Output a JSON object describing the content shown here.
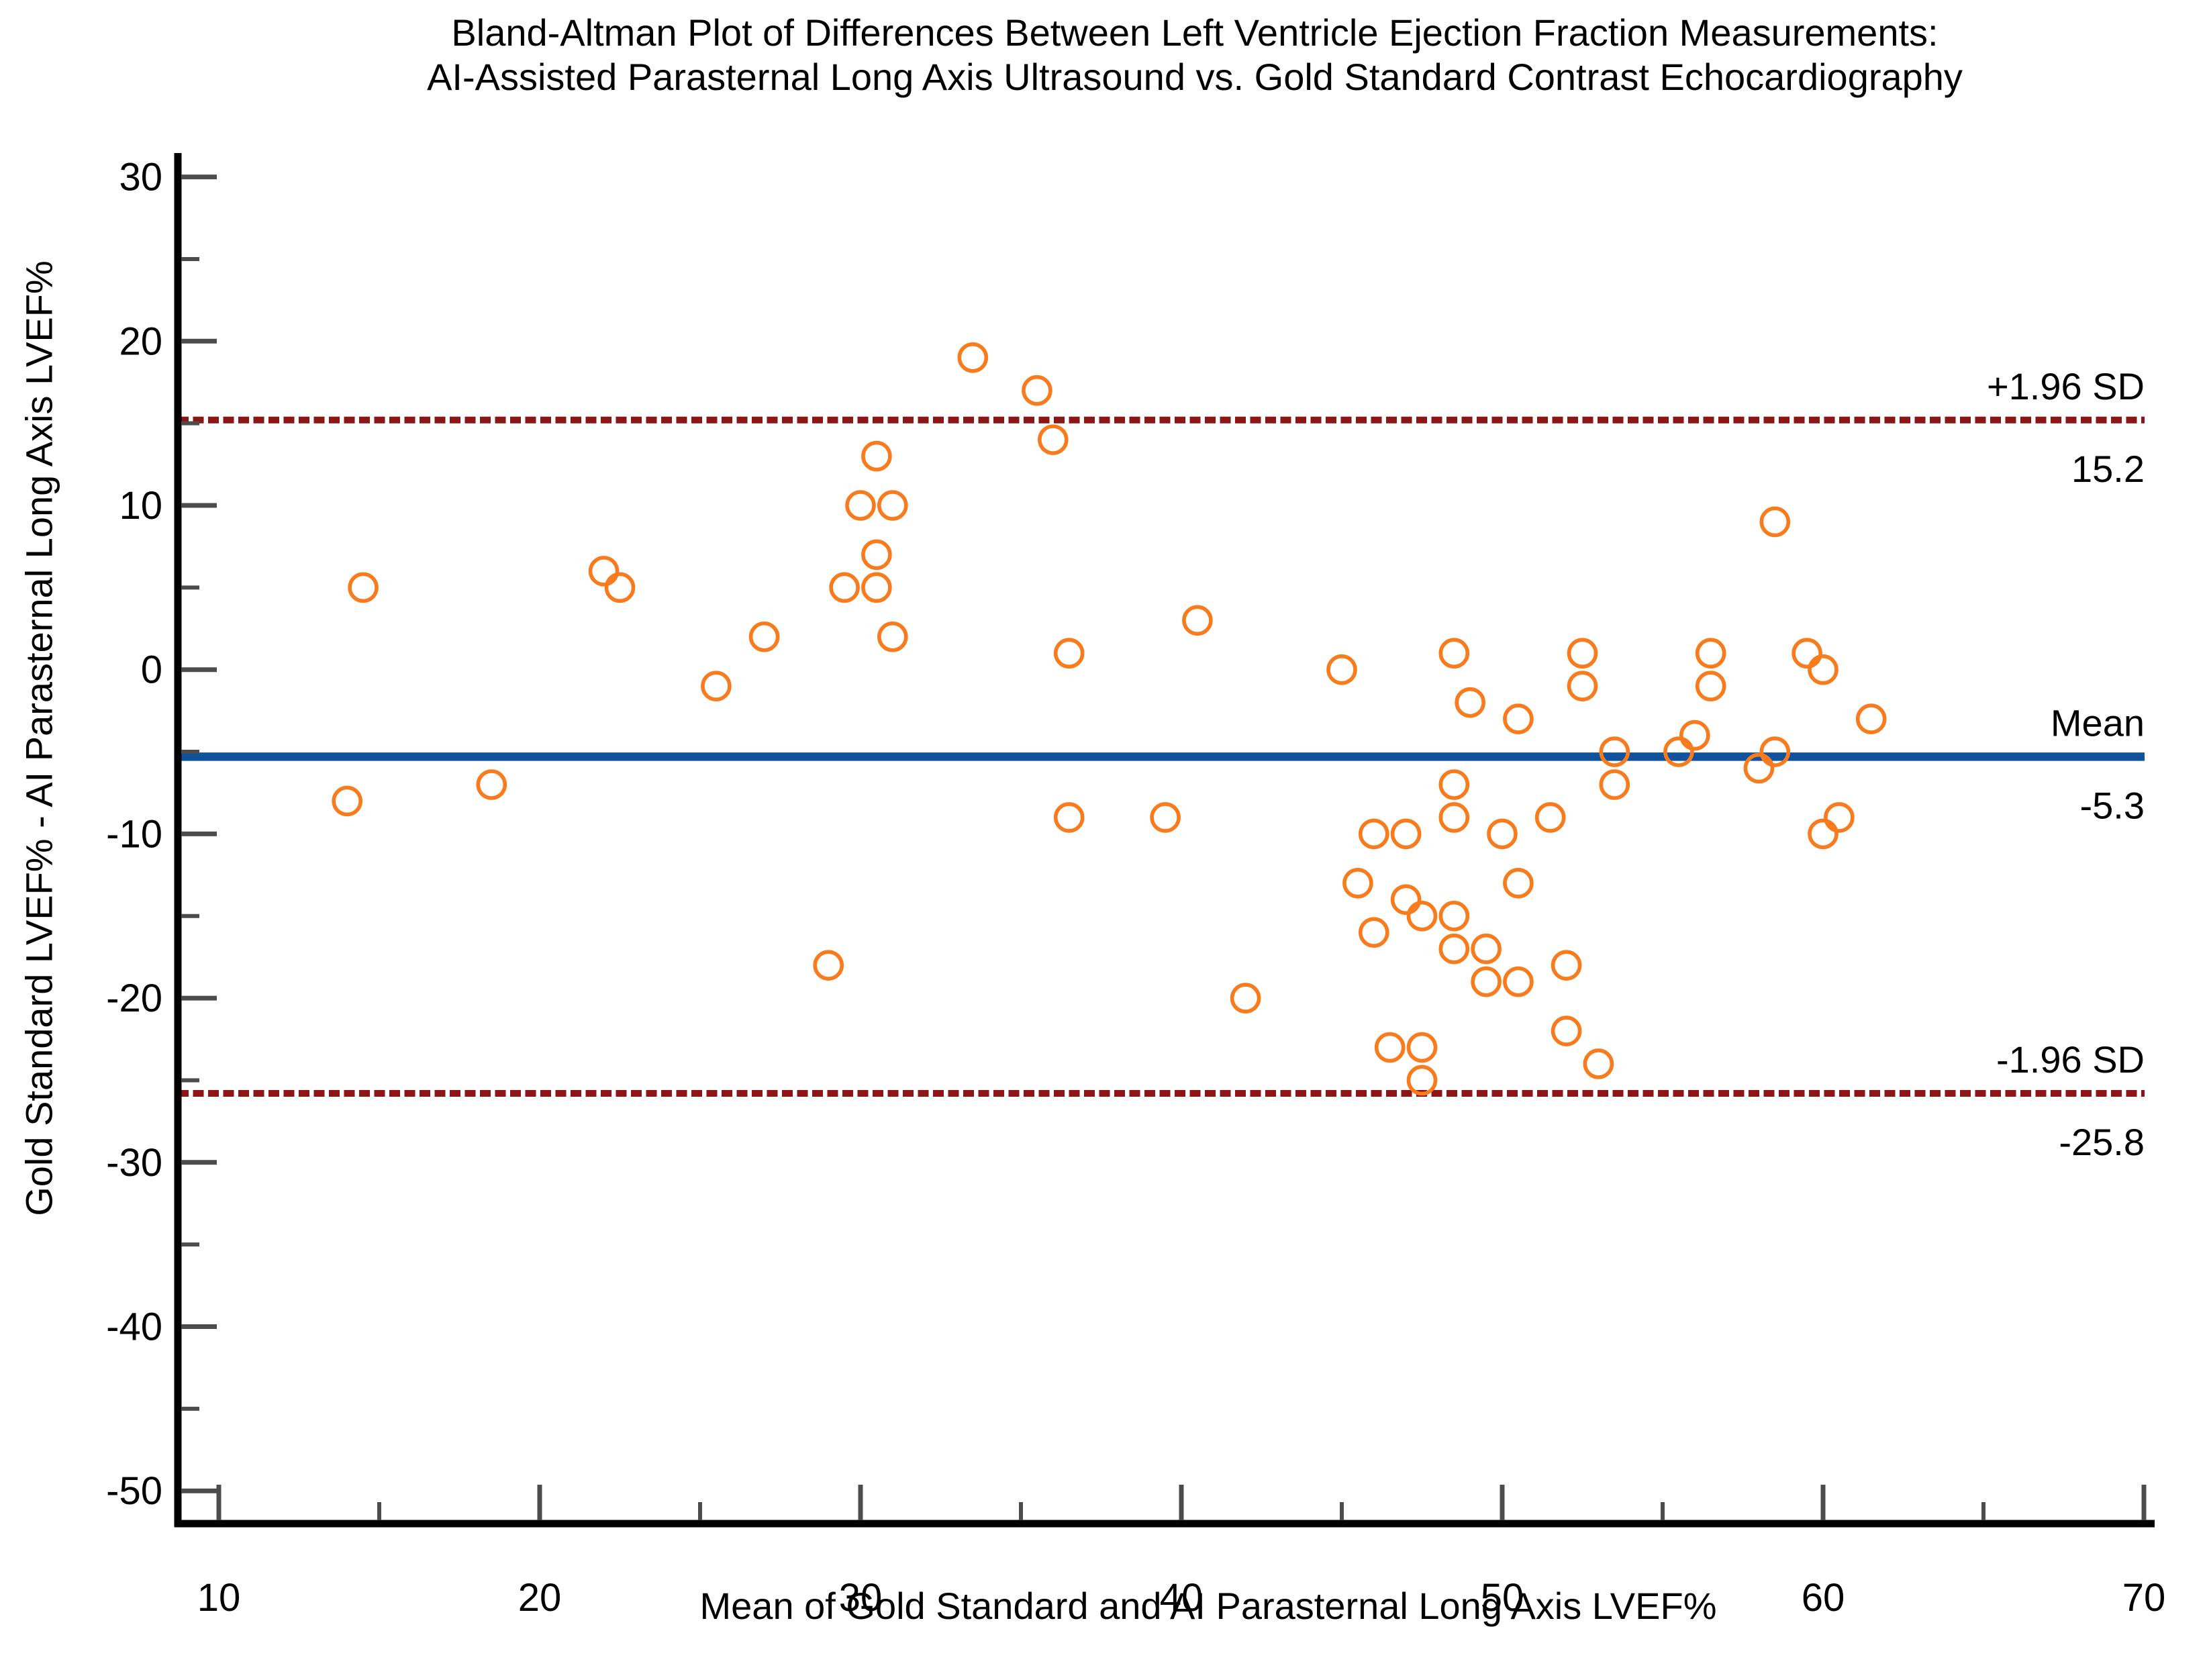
{
  "title": {
    "line1": "Bland-Altman Plot of Differences Between Left Ventricle Ejection Fraction Measurements:",
    "line2": "AI-Assisted Parasternal Long Axis Ultrasound vs. Gold Standard Contrast Echocardiography"
  },
  "chart_data": {
    "type": "scatter",
    "title": "Bland-Altman Plot of Differences Between Left Ventricle Ejection Fraction Measurements: AI-Assisted Parasternal Long Axis Ultrasound vs. Gold Standard Contrast Echocardiography",
    "xlabel": "Mean of Gold Standard and AI Parasternal Long Axis LVEF%",
    "ylabel": "Gold Standard LVEF% - AI Parasternal Long Axis LVEF%",
    "xlim": [
      10,
      70
    ],
    "ylim": [
      -50,
      30
    ],
    "x_ticks_major": [
      10,
      20,
      30,
      40,
      50,
      60,
      70
    ],
    "x_ticks_minor": [
      15,
      25,
      35,
      45,
      55,
      65
    ],
    "y_ticks_major": [
      30,
      20,
      10,
      0,
      -10,
      -20,
      -30,
      -40,
      -50
    ],
    "y_ticks_minor": [
      25,
      15,
      5,
      -5,
      -15,
      -25,
      -35,
      -45
    ],
    "grid": "off",
    "legend": "none",
    "marker": {
      "shape": "open-circle",
      "color": "#F87C1D"
    },
    "points": [
      [
        14,
        -8
      ],
      [
        14.5,
        5
      ],
      [
        18.5,
        -7
      ],
      [
        22,
        6
      ],
      [
        22.5,
        5
      ],
      [
        25.5,
        -1
      ],
      [
        27,
        2
      ],
      [
        29,
        -18
      ],
      [
        29.5,
        5
      ],
      [
        30,
        10
      ],
      [
        30.5,
        13
      ],
      [
        30.5,
        7
      ],
      [
        30.5,
        5
      ],
      [
        31,
        10
      ],
      [
        31,
        2
      ],
      [
        33.5,
        19
      ],
      [
        35.5,
        17
      ],
      [
        36,
        14
      ],
      [
        36.5,
        1
      ],
      [
        36.5,
        -9
      ],
      [
        39.5,
        -9
      ],
      [
        40.5,
        3
      ],
      [
        42,
        -20
      ],
      [
        45,
        0
      ],
      [
        45.5,
        -13
      ],
      [
        46,
        -10
      ],
      [
        46,
        -16
      ],
      [
        46.5,
        -23
      ],
      [
        47,
        -10
      ],
      [
        47,
        -14
      ],
      [
        47.5,
        -15
      ],
      [
        47.5,
        -23
      ],
      [
        47.5,
        -25
      ],
      [
        48.5,
        1
      ],
      [
        48.5,
        -7
      ],
      [
        48.5,
        -9
      ],
      [
        48.5,
        -15
      ],
      [
        48.5,
        -17
      ],
      [
        49,
        -2
      ],
      [
        49.5,
        -17
      ],
      [
        49.5,
        -19
      ],
      [
        50,
        -10
      ],
      [
        50.5,
        -3
      ],
      [
        50.5,
        -13
      ],
      [
        50.5,
        -19
      ],
      [
        51.5,
        -9
      ],
      [
        52,
        -18
      ],
      [
        52,
        -22
      ],
      [
        52.5,
        1
      ],
      [
        52.5,
        -1
      ],
      [
        53,
        -24
      ],
      [
        53.5,
        -5
      ],
      [
        53.5,
        -7
      ],
      [
        55.5,
        -5
      ],
      [
        56,
        -4
      ],
      [
        56.5,
        1
      ],
      [
        56.5,
        -1
      ],
      [
        58,
        -6
      ],
      [
        58.5,
        9
      ],
      [
        58.5,
        -5
      ],
      [
        59.5,
        1
      ],
      [
        60,
        0
      ],
      [
        60,
        -10
      ],
      [
        60.5,
        -9
      ],
      [
        61.5,
        -3
      ]
    ],
    "reference_lines": [
      {
        "name": "upper-loa",
        "label": "+1.96 SD",
        "value": 15.2,
        "value_label": "15.2",
        "style": "dashed",
        "color": "#8D1515"
      },
      {
        "name": "mean",
        "label": "Mean",
        "value": -5.3,
        "value_label": "-5.3",
        "style": "solid",
        "color": "#10529C"
      },
      {
        "name": "lower-loa",
        "label": "-1.96 SD",
        "value": -25.8,
        "value_label": "-25.8",
        "style": "dashed",
        "color": "#8D1515"
      }
    ],
    "colors": {
      "marker": "#F87C1D",
      "mean_line": "#10529C",
      "loa_line": "#8D1515",
      "spine": "#000000",
      "tick": "#4C4C4C",
      "text": "#000000"
    }
  }
}
